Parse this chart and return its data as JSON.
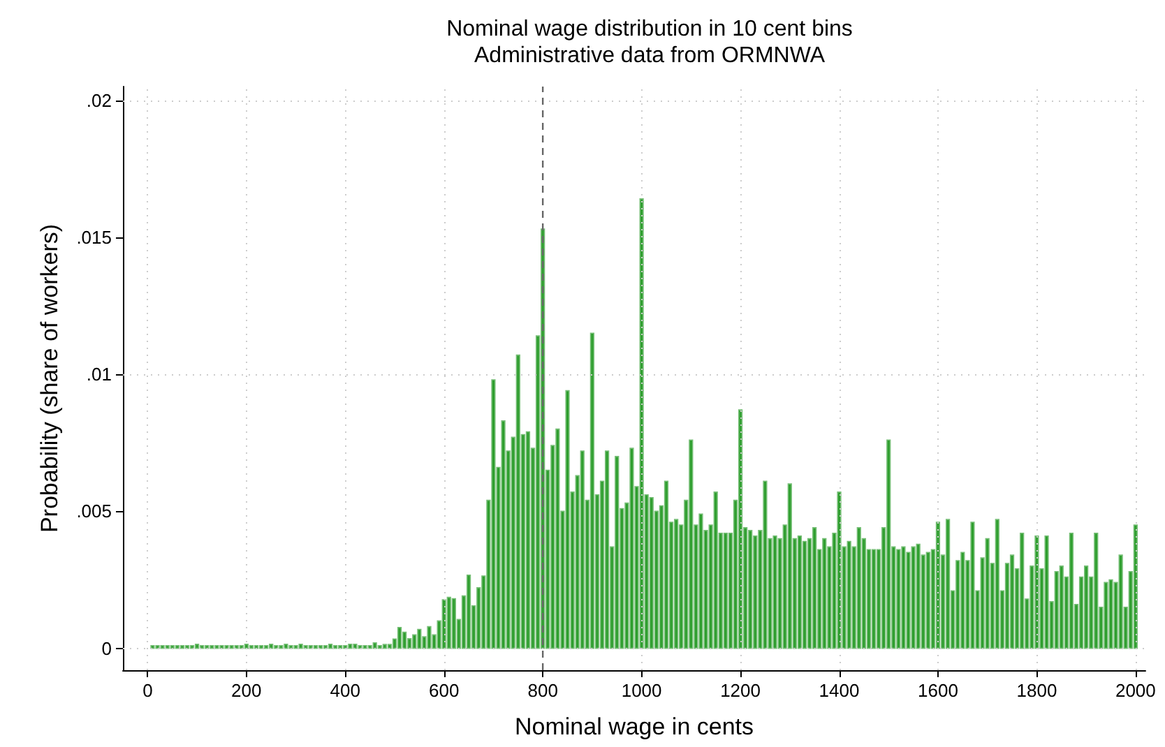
{
  "chart_data": {
    "type": "histogram",
    "title": "Nominal wage distribution in 10 cent bins",
    "subtitle": "Administrative data from ORMNWA",
    "xlabel": "Nominal wage in cents",
    "ylabel": "Probability (share of workers)",
    "bins": [
      5,
      15,
      25,
      35,
      45,
      55,
      65,
      75,
      85,
      95,
      105,
      115,
      125,
      135,
      145,
      155,
      165,
      175,
      185,
      195,
      205,
      215,
      225,
      235,
      245,
      255,
      265,
      275,
      285,
      295,
      305,
      315,
      325,
      335,
      345,
      355,
      365,
      375,
      385,
      395,
      405,
      415,
      425,
      435,
      445,
      455,
      465,
      475,
      485,
      495,
      505,
      515,
      525,
      535,
      545,
      555,
      565,
      575,
      585,
      595,
      605,
      615,
      625,
      635,
      645,
      655,
      665,
      675,
      685,
      695,
      705,
      715,
      725,
      735,
      745,
      755,
      765,
      775,
      785,
      795,
      805,
      815,
      825,
      835,
      845,
      855,
      865,
      875,
      885,
      895,
      905,
      915,
      925,
      935,
      945,
      955,
      965,
      975,
      985,
      995,
      1005,
      1015,
      1025,
      1035,
      1045,
      1055,
      1065,
      1075,
      1085,
      1095,
      1105,
      1115,
      1125,
      1135,
      1145,
      1155,
      1165,
      1175,
      1185,
      1195,
      1205,
      1215,
      1225,
      1235,
      1245,
      1255,
      1265,
      1275,
      1285,
      1295,
      1305,
      1315,
      1325,
      1335,
      1345,
      1355,
      1365,
      1375,
      1385,
      1395,
      1405,
      1415,
      1425,
      1435,
      1445,
      1455,
      1465,
      1475,
      1485,
      1495,
      1505,
      1515,
      1525,
      1535,
      1545,
      1555,
      1565,
      1575,
      1585,
      1595,
      1605,
      1615,
      1625,
      1635,
      1645,
      1655,
      1665,
      1675,
      1685,
      1695,
      1705,
      1715,
      1725,
      1735,
      1745,
      1755,
      1765,
      1775,
      1785,
      1795,
      1805,
      1815,
      1825,
      1835,
      1845,
      1855,
      1865,
      1875,
      1885,
      1895,
      1905,
      1915,
      1925,
      1935,
      1945,
      1955,
      1965,
      1975,
      1985,
      1995,
      2005
    ],
    "values": [
      0.0001,
      0.0001,
      0.0001,
      0.0001,
      0.0001,
      0.0001,
      0.0001,
      0.0001,
      0.0001,
      0.00015,
      0.0001,
      0.0001,
      0.0001,
      0.0001,
      0.0001,
      0.0001,
      0.0001,
      0.0001,
      0.0001,
      0.00015,
      0.0001,
      0.0001,
      0.0001,
      0.0001,
      0.00015,
      0.0001,
      0.0001,
      0.00015,
      0.0001,
      0.0001,
      0.00015,
      0.0001,
      0.0001,
      0.0001,
      0.0001,
      0.0001,
      0.00015,
      0.0001,
      0.0001,
      0.0001,
      0.00015,
      0.00015,
      0.0001,
      0.0001,
      0.0001,
      0.0002,
      0.0001,
      0.00014,
      0.00014,
      0.00034,
      0.00076,
      0.00059,
      0.00035,
      0.00049,
      0.00069,
      0.00042,
      0.00079,
      0.00049,
      0.001,
      0.00177,
      0.00186,
      0.00181,
      0.00105,
      0.00191,
      0.00267,
      0.00155,
      0.00221,
      0.00264,
      0.0054,
      0.0098,
      0.0066,
      0.0083,
      0.0072,
      0.0077,
      0.0107,
      0.0078,
      0.0079,
      0.0073,
      0.0114,
      0.0153,
      0.0065,
      0.0074,
      0.008,
      0.005,
      0.0094,
      0.0057,
      0.0063,
      0.0072,
      0.0054,
      0.0115,
      0.0056,
      0.0061,
      0.0072,
      0.0037,
      0.007,
      0.0051,
      0.0053,
      0.0073,
      0.0059,
      0.0164,
      0.0056,
      0.0055,
      0.005,
      0.0052,
      0.0061,
      0.0046,
      0.0047,
      0.0045,
      0.0054,
      0.0076,
      0.0045,
      0.0049,
      0.0043,
      0.0045,
      0.0057,
      0.0042,
      0.0042,
      0.0042,
      0.0054,
      0.0087,
      0.0044,
      0.0043,
      0.0041,
      0.0043,
      0.0061,
      0.004,
      0.0041,
      0.004,
      0.0045,
      0.006,
      0.004,
      0.0041,
      0.0039,
      0.004,
      0.0044,
      0.0036,
      0.004,
      0.0037,
      0.0042,
      0.0057,
      0.0037,
      0.0039,
      0.0037,
      0.0044,
      0.004,
      0.0036,
      0.0036,
      0.0036,
      0.0044,
      0.0076,
      0.0037,
      0.0036,
      0.0037,
      0.0035,
      0.0037,
      0.0038,
      0.0034,
      0.0035,
      0.0036,
      0.0046,
      0.0034,
      0.0047,
      0.0021,
      0.0032,
      0.0035,
      0.0032,
      0.0046,
      0.0021,
      0.0033,
      0.004,
      0.0031,
      0.0047,
      0.0021,
      0.0031,
      0.0034,
      0.0029,
      0.0042,
      0.0018,
      0.003,
      0.0041,
      0.0029,
      0.0041,
      0.0017,
      0.0028,
      0.003,
      0.0026,
      0.0042,
      0.0016,
      0.0026,
      0.003,
      0.0026,
      0.0042,
      0.0015,
      0.0024,
      0.0025,
      0.0024,
      0.0034,
      0.0015,
      0.0028,
      0.0045
    ],
    "color": "#2e9e2e",
    "xlim": [
      -50,
      2020
    ],
    "xticks": [
      0,
      200,
      400,
      600,
      800,
      1000,
      1200,
      1400,
      1600,
      1800,
      2000
    ],
    "ylim": [
      -0.0008,
      0.0205
    ],
    "yticks": [
      {
        "value": 0,
        "label": "0"
      },
      {
        "value": 0.005,
        "label": ".005"
      },
      {
        "value": 0.01,
        "label": ".01"
      },
      {
        "value": 0.015,
        "label": ".015"
      },
      {
        "value": 0.02,
        "label": ".02"
      }
    ],
    "grid": true,
    "ref_lines": [
      {
        "axis": "x",
        "value": 800,
        "color": "#666666",
        "line_style": "dashed"
      }
    ]
  }
}
